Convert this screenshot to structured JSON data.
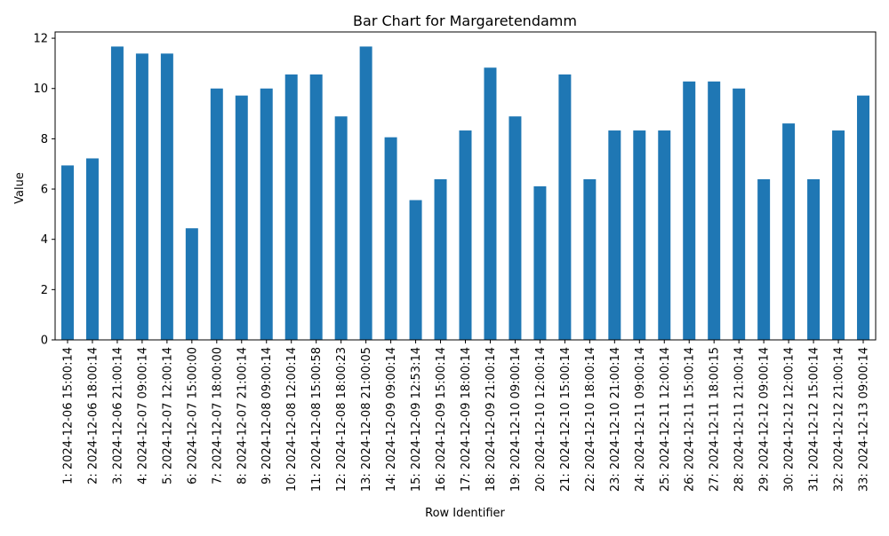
{
  "chart_data": {
    "type": "bar",
    "title": "Bar Chart for Margaretendamm",
    "xlabel": "Row Identifier",
    "ylabel": "Value",
    "ylim": [
      0,
      12.25
    ],
    "yticks": [
      0,
      2,
      4,
      6,
      8,
      10,
      12
    ],
    "grid": false,
    "legend": "none",
    "bar_color": "#1f77b4",
    "categories": [
      "1: 2024-12-06 15:00:14",
      "2: 2024-12-06 18:00:14",
      "3: 2024-12-06 21:00:14",
      "4: 2024-12-07 09:00:14",
      "5: 2024-12-07 12:00:14",
      "6: 2024-12-07 15:00:00",
      "7: 2024-12-07 18:00:00",
      "8: 2024-12-07 21:00:14",
      "9: 2024-12-08 09:00:14",
      "10: 2024-12-08 12:00:14",
      "11: 2024-12-08 15:00:58",
      "12: 2024-12-08 18:00:23",
      "13: 2024-12-08 21:00:05",
      "14: 2024-12-09 09:00:14",
      "15: 2024-12-09 12:53:14",
      "16: 2024-12-09 15:00:14",
      "17: 2024-12-09 18:00:14",
      "18: 2024-12-09 21:00:14",
      "19: 2024-12-10 09:00:14",
      "20: 2024-12-10 12:00:14",
      "21: 2024-12-10 15:00:14",
      "22: 2024-12-10 18:00:14",
      "23: 2024-12-10 21:00:14",
      "24: 2024-12-11 09:00:14",
      "25: 2024-12-11 12:00:14",
      "26: 2024-12-11 15:00:14",
      "27: 2024-12-11 18:00:15",
      "28: 2024-12-11 21:00:14",
      "29: 2024-12-12 09:00:14",
      "30: 2024-12-12 12:00:14",
      "31: 2024-12-12 15:00:14",
      "32: 2024-12-12 21:00:14",
      "33: 2024-12-13 09:00:14"
    ],
    "values": [
      6.94,
      7.22,
      11.67,
      11.39,
      11.39,
      4.44,
      10.0,
      9.72,
      10.0,
      10.56,
      10.56,
      8.89,
      11.67,
      8.06,
      5.56,
      6.39,
      8.33,
      10.83,
      8.89,
      6.11,
      10.56,
      6.39,
      8.33,
      8.33,
      8.33,
      10.28,
      10.28,
      10.0,
      6.39,
      8.61,
      6.39,
      8.33,
      9.72
    ]
  }
}
